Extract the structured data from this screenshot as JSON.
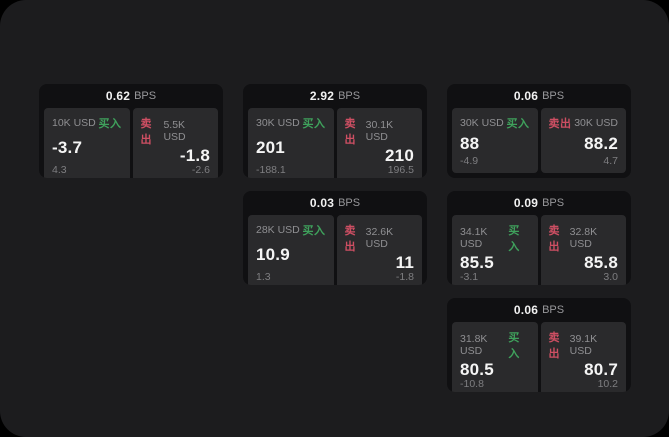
{
  "labels": {
    "bps_unit": "BPS",
    "buy": "买入",
    "sell": "卖出"
  },
  "colors": {
    "page_background": "#1c1c1e",
    "card_background": "#101012",
    "tile_background": "#2a2a2c",
    "buy_green": "#3fa15c",
    "sell_red": "#ce4f63",
    "text_primary": "#f5f5f5",
    "text_muted": "#8f8f92"
  },
  "cards": [
    {
      "bps": "0.62",
      "buy": {
        "amount": "10K USD",
        "value": "-3.7",
        "delta": "4.3"
      },
      "sell": {
        "amount": "5.5K USD",
        "value": "-1.8",
        "delta": "-2.6"
      }
    },
    {
      "bps": "2.92",
      "buy": {
        "amount": "30K USD",
        "value": "201",
        "delta": "-188.1"
      },
      "sell": {
        "amount": "30.1K USD",
        "value": "210",
        "delta": "196.5"
      }
    },
    {
      "bps": "0.06",
      "buy": {
        "amount": "30K USD",
        "value": "88",
        "delta": "-4.9"
      },
      "sell": {
        "amount": "30K USD",
        "value": "88.2",
        "delta": "4.7"
      }
    },
    {
      "bps": "0.03",
      "buy": {
        "amount": "28K USD",
        "value": "10.9",
        "delta": "1.3"
      },
      "sell": {
        "amount": "32.6K USD",
        "value": "11",
        "delta": "-1.8"
      }
    },
    {
      "bps": "0.09",
      "buy": {
        "amount": "34.1K USD",
        "value": "85.5",
        "delta": "-3.1"
      },
      "sell": {
        "amount": "32.8K USD",
        "value": "85.8",
        "delta": "3.0"
      }
    },
    {
      "bps": "0.06",
      "buy": {
        "amount": "31.8K USD",
        "value": "80.5",
        "delta": "-10.8"
      },
      "sell": {
        "amount": "39.1K USD",
        "value": "80.7",
        "delta": "10.2"
      }
    }
  ]
}
